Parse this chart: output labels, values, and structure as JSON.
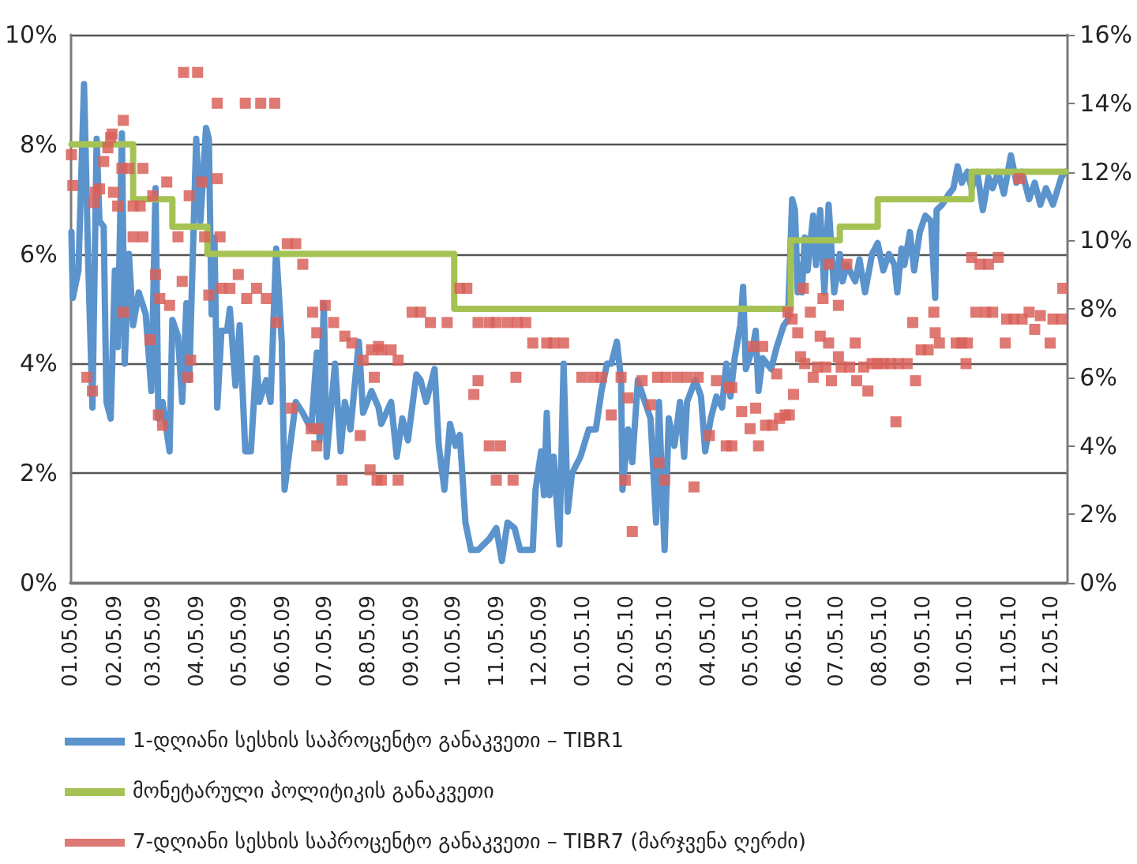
{
  "chart_data": {
    "type": "line",
    "xlim": [
      "2009-01-04",
      "2010-12-16"
    ],
    "xticks": [
      {
        "value": "2009-01-05",
        "label": "01.05.09"
      },
      {
        "value": "2009-02-05",
        "label": "02.05.09"
      },
      {
        "value": "2009-03-05",
        "label": "03.05.09"
      },
      {
        "value": "2009-04-05",
        "label": "04.05.09"
      },
      {
        "value": "2009-05-05",
        "label": "05.05.09"
      },
      {
        "value": "2009-06-05",
        "label": "06.05.09"
      },
      {
        "value": "2009-07-05",
        "label": "07.05.09"
      },
      {
        "value": "2009-08-05",
        "label": "08.05.09"
      },
      {
        "value": "2009-09-05",
        "label": "09.05.09"
      },
      {
        "value": "2009-10-05",
        "label": "10.05.09"
      },
      {
        "value": "2009-11-05",
        "label": "11.05.09"
      },
      {
        "value": "2009-12-05",
        "label": "12.05.09"
      },
      {
        "value": "2010-01-05",
        "label": "01.05.10"
      },
      {
        "value": "2010-02-05",
        "label": "02.05.10"
      },
      {
        "value": "2010-03-05",
        "label": "03.05.10"
      },
      {
        "value": "2010-04-05",
        "label": "04.05.10"
      },
      {
        "value": "2010-05-05",
        "label": "05.05.10"
      },
      {
        "value": "2010-06-05",
        "label": "06.05.10"
      },
      {
        "value": "2010-07-05",
        "label": "07.05.10"
      },
      {
        "value": "2010-08-05",
        "label": "08.05.10"
      },
      {
        "value": "2010-09-05",
        "label": "09.05.10"
      },
      {
        "value": "2010-10-05",
        "label": "10.05.10"
      },
      {
        "value": "2010-11-05",
        "label": "11.05.10"
      },
      {
        "value": "2010-12-05",
        "label": "12.05.10"
      }
    ],
    "ylim": [
      0,
      10
    ],
    "yticks": [
      {
        "value": 0,
        "label": "0%"
      },
      {
        "value": 2,
        "label": "2%"
      },
      {
        "value": 4,
        "label": "4%"
      },
      {
        "value": 6,
        "label": "6%"
      },
      {
        "value": 8,
        "label": "8%"
      },
      {
        "value": 10,
        "label": "10%"
      }
    ],
    "y2lim": [
      0,
      16
    ],
    "y2ticks": [
      {
        "value": 0,
        "label": "0%"
      },
      {
        "value": 2,
        "label": "2%"
      },
      {
        "value": 4,
        "label": "4%"
      },
      {
        "value": 6,
        "label": "6%"
      },
      {
        "value": 8,
        "label": "8%"
      },
      {
        "value": 10,
        "label": "10%"
      },
      {
        "value": 12,
        "label": "12%"
      },
      {
        "value": 14,
        "label": "14%"
      },
      {
        "value": 16,
        "label": "16%"
      }
    ],
    "grid": "y",
    "legend": "bottom",
    "series": [
      {
        "name": "1-დღიანი სესხის საპროცენტო განაკვეთი – TIBR1",
        "color": "#5b93cc",
        "marker": "none",
        "line_style": "solid",
        "x": [
          "2009-01-05",
          "2009-01-06",
          "2009-01-10",
          "2009-01-14",
          "2009-01-17",
          "2009-01-20",
          "2009-01-23",
          "2009-01-25",
          "2009-01-28",
          "2009-01-30",
          "2009-02-02",
          "2009-02-05",
          "2009-02-07",
          "2009-02-10",
          "2009-02-12",
          "2009-02-15",
          "2009-02-18",
          "2009-02-22",
          "2009-02-27",
          "2009-03-03",
          "2009-03-06",
          "2009-03-08",
          "2009-03-11",
          "2009-03-16",
          "2009-03-18",
          "2009-03-22",
          "2009-03-25",
          "2009-03-28",
          "2009-03-30",
          "2009-04-04",
          "2009-04-07",
          "2009-04-11",
          "2009-04-13",
          "2009-04-15",
          "2009-04-17",
          "2009-04-19",
          "2009-04-22",
          "2009-04-26",
          "2009-04-28",
          "2009-05-02",
          "2009-05-05",
          "2009-05-09",
          "2009-05-13",
          "2009-05-17",
          "2009-05-19",
          "2009-05-24",
          "2009-05-27",
          "2009-05-31",
          "2009-06-04",
          "2009-06-06",
          "2009-06-10",
          "2009-06-14",
          "2009-06-19",
          "2009-06-25",
          "2009-06-29",
          "2009-07-01",
          "2009-07-04",
          "2009-07-06",
          "2009-07-12",
          "2009-07-16",
          "2009-07-19",
          "2009-07-23",
          "2009-07-29",
          "2009-08-01",
          "2009-08-07",
          "2009-08-12",
          "2009-08-14",
          "2009-08-21",
          "2009-08-25",
          "2009-08-29",
          "2009-09-02",
          "2009-09-08",
          "2009-09-11",
          "2009-09-15",
          "2009-09-21",
          "2009-09-24",
          "2009-09-28",
          "2009-10-02",
          "2009-10-06",
          "2009-10-09",
          "2009-10-13",
          "2009-10-17",
          "2009-10-22",
          "2009-10-30",
          "2009-11-04",
          "2009-11-08",
          "2009-11-12",
          "2009-11-17",
          "2009-11-21",
          "2009-11-30",
          "2009-12-02",
          "2009-12-06",
          "2009-12-08",
          "2009-12-10",
          "2009-12-12",
          "2009-12-15",
          "2009-12-19",
          "2009-12-22",
          "2009-12-25",
          "2009-12-28",
          "2010-01-03",
          "2010-01-09",
          "2010-01-14",
          "2010-01-18",
          "2010-01-22",
          "2010-01-25",
          "2010-01-29",
          "2010-02-01",
          "2010-02-02",
          "2010-02-06",
          "2010-02-09",
          "2010-02-13",
          "2010-02-18",
          "2010-02-22",
          "2010-02-26",
          "2010-02-28",
          "2010-03-04",
          "2010-03-07",
          "2010-03-11",
          "2010-03-15",
          "2010-03-18",
          "2010-03-20",
          "2010-03-26",
          "2010-03-30",
          "2010-04-02",
          "2010-04-06",
          "2010-04-10",
          "2010-04-14",
          "2010-04-17",
          "2010-04-20",
          "2010-04-23",
          "2010-04-27",
          "2010-04-29",
          "2010-05-01",
          "2010-05-06",
          "2010-05-08",
          "2010-05-10",
          "2010-05-13",
          "2010-05-19",
          "2010-05-23",
          "2010-05-28",
          "2010-05-31",
          "2010-06-03",
          "2010-06-05",
          "2010-06-07",
          "2010-06-09",
          "2010-06-10",
          "2010-06-12",
          "2010-06-14",
          "2010-06-18",
          "2010-06-20",
          "2010-06-23",
          "2010-06-26",
          "2010-06-29",
          "2010-07-03",
          "2010-07-07",
          "2010-07-09",
          "2010-07-12",
          "2010-07-18",
          "2010-07-21",
          "2010-07-25",
          "2010-07-30",
          "2010-08-03",
          "2010-08-07",
          "2010-08-11",
          "2010-08-15",
          "2010-08-17",
          "2010-08-20",
          "2010-08-22",
          "2010-08-26",
          "2010-08-29",
          "2010-09-02",
          "2010-09-06",
          "2010-09-10",
          "2010-09-13",
          "2010-09-14",
          "2010-09-18",
          "2010-09-23",
          "2010-09-26",
          "2010-09-29",
          "2010-10-02",
          "2010-10-06",
          "2010-10-09",
          "2010-10-13",
          "2010-10-17",
          "2010-10-21",
          "2010-10-24",
          "2010-10-28",
          "2010-11-01",
          "2010-11-06",
          "2010-11-10",
          "2010-11-14",
          "2010-11-19",
          "2010-11-23",
          "2010-11-27",
          "2010-12-01",
          "2010-12-06",
          "2010-12-12",
          "2010-12-15"
        ],
        "values": [
          6.4,
          5.2,
          5.7,
          9.1,
          5.8,
          3.2,
          8.1,
          6.6,
          6.5,
          3.3,
          3.0,
          5.7,
          4.3,
          8.2,
          4.0,
          6.0,
          4.7,
          5.3,
          4.9,
          3.5,
          7.2,
          3.0,
          3.3,
          2.4,
          4.8,
          4.5,
          3.3,
          5.1,
          3.7,
          8.1,
          6.6,
          8.3,
          8.1,
          4.9,
          6.3,
          3.2,
          4.6,
          4.6,
          5.0,
          3.6,
          4.7,
          2.4,
          2.4,
          4.1,
          3.3,
          3.7,
          3.3,
          6.1,
          4.4,
          1.7,
          2.5,
          3.3,
          3.1,
          2.8,
          4.2,
          2.6,
          5.1,
          2.3,
          4.0,
          2.4,
          3.3,
          2.8,
          4.4,
          3.1,
          3.5,
          3.2,
          2.9,
          3.3,
          2.3,
          3.0,
          2.6,
          3.8,
          3.7,
          3.3,
          3.9,
          2.5,
          1.7,
          2.9,
          2.5,
          2.7,
          1.1,
          0.6,
          0.6,
          0.8,
          1.0,
          0.4,
          1.1,
          1.0,
          0.6,
          0.6,
          1.7,
          2.4,
          1.6,
          3.1,
          1.6,
          2.3,
          0.7,
          4.0,
          1.3,
          2.0,
          2.3,
          2.8,
          2.8,
          3.5,
          4.0,
          4.0,
          4.4,
          3.7,
          1.7,
          2.8,
          2.2,
          3.7,
          3.3,
          3.0,
          1.1,
          3.3,
          0.6,
          3.0,
          2.5,
          3.3,
          2.3,
          3.3,
          3.7,
          3.4,
          2.4,
          3.0,
          3.4,
          3.2,
          4.0,
          3.4,
          4.1,
          4.7,
          5.4,
          3.9,
          4.3,
          4.6,
          3.5,
          4.1,
          3.9,
          4.3,
          4.7,
          4.8,
          7.0,
          6.8,
          5.3,
          5.8,
          5.3,
          6.3,
          5.7,
          6.7,
          5.8,
          6.8,
          5.3,
          6.9,
          5.3,
          6.0,
          5.5,
          5.8,
          5.5,
          5.9,
          5.3,
          6.0,
          6.2,
          5.7,
          6.0,
          5.8,
          5.3,
          6.1,
          5.8,
          6.4,
          5.7,
          6.4,
          6.7,
          6.6,
          5.2,
          6.8,
          6.9,
          7.1,
          7.2,
          7.6,
          7.3,
          7.5,
          7.2,
          7.5,
          6.8,
          7.4,
          7.2,
          7.5,
          7.1,
          7.8,
          7.3,
          7.5,
          7.0,
          7.3,
          6.9,
          7.2,
          6.9,
          7.4,
          7.5
        ]
      },
      {
        "name": "მონეტარული პოლიტიკის განაკვეთი",
        "type": "step",
        "color": "#a5c254",
        "marker": "none",
        "line_style": "solid",
        "x": [
          "2009-01-05",
          "2009-02-18",
          "2009-03-18",
          "2009-04-12",
          "2009-10-05",
          "2010-06-02",
          "2010-07-07",
          "2010-08-03",
          "2010-10-09",
          "2010-12-15"
        ],
        "values": [
          8,
          7,
          6.5,
          6,
          5,
          6.25,
          6.5,
          7,
          7.5,
          7.5
        ]
      },
      {
        "name": "7-დღიანი სესხის საპროცენტო განაკვეთი – TIBR7 (მარჯვენა ღერძი)",
        "type": "scatter",
        "color": "#d9625a",
        "marker": "square",
        "axis": "y2",
        "x": [
          "2009-01-05",
          "2009-01-06",
          "2009-01-16",
          "2009-01-20",
          "2009-01-21",
          "2009-01-22",
          "2009-01-25",
          "2009-01-28",
          "2009-01-31",
          "2009-02-02",
          "2009-02-03",
          "2009-02-04",
          "2009-02-07",
          "2009-02-10",
          "2009-02-11",
          "2009-02-11",
          "2009-02-15",
          "2009-02-18",
          "2009-02-18",
          "2009-02-23",
          "2009-02-25",
          "2009-02-25",
          "2009-03-02",
          "2009-03-04",
          "2009-03-06",
          "2009-03-08",
          "2009-03-09",
          "2009-03-11",
          "2009-03-14",
          "2009-03-16",
          "2009-03-22",
          "2009-03-25",
          "2009-03-26",
          "2009-03-29",
          "2009-03-30",
          "2009-03-31",
          "2009-04-05",
          "2009-04-08",
          "2009-04-10",
          "2009-04-13",
          "2009-04-19",
          "2009-04-19",
          "2009-04-21",
          "2009-04-22",
          "2009-04-28",
          "2009-05-04",
          "2009-05-09",
          "2009-05-10",
          "2009-05-17",
          "2009-05-20",
          "2009-05-24",
          "2009-05-30",
          "2009-05-31",
          "2009-06-08",
          "2009-06-11",
          "2009-06-14",
          "2009-06-19",
          "2009-06-25",
          "2009-06-26",
          "2009-06-29",
          "2009-06-29",
          "2009-06-30",
          "2009-07-05",
          "2009-07-11",
          "2009-07-17",
          "2009-07-19",
          "2009-07-24",
          "2009-07-30",
          "2009-08-01",
          "2009-08-06",
          "2009-08-07",
          "2009-08-09",
          "2009-08-11",
          "2009-08-12",
          "2009-08-14",
          "2009-08-14",
          "2009-08-21",
          "2009-08-26",
          "2009-08-26",
          "2009-09-05",
          "2009-09-11",
          "2009-09-18",
          "2009-09-30",
          "2009-10-09",
          "2009-10-14",
          "2009-10-19",
          "2009-10-22",
          "2009-10-22",
          "2009-10-30",
          "2009-10-30",
          "2009-11-04",
          "2009-11-04",
          "2009-11-07",
          "2009-11-12",
          "2009-11-16",
          "2009-11-18",
          "2009-11-19",
          "2009-11-25",
          "2009-11-30",
          "2009-12-10",
          "2009-12-15",
          "2009-12-22",
          "2010-01-04",
          "2010-01-12",
          "2010-01-18",
          "2010-01-25",
          "2010-02-01",
          "2010-02-04",
          "2010-02-06",
          "2010-02-09",
          "2010-02-16",
          "2010-02-22",
          "2010-02-27",
          "2010-02-28",
          "2010-03-04",
          "2010-03-05",
          "2010-03-13",
          "2010-03-20",
          "2010-03-25",
          "2010-03-28",
          "2010-04-05",
          "2010-04-10",
          "2010-04-17",
          "2010-04-19",
          "2010-04-21",
          "2010-04-21",
          "2010-04-28",
          "2010-05-04",
          "2010-05-06",
          "2010-05-08",
          "2010-05-10",
          "2010-05-13",
          "2010-05-15",
          "2010-05-20",
          "2010-05-23",
          "2010-05-25",
          "2010-05-29",
          "2010-05-31",
          "2010-06-01",
          "2010-06-03",
          "2010-06-04",
          "2010-06-07",
          "2010-06-09",
          "2010-06-11",
          "2010-06-12",
          "2010-06-16",
          "2010-06-18",
          "2010-06-21",
          "2010-06-23",
          "2010-06-25",
          "2010-06-27",
          "2010-06-29",
          "2010-06-29",
          "2010-07-01",
          "2010-07-06",
          "2010-07-06",
          "2010-07-08",
          "2010-07-12",
          "2010-07-14",
          "2010-07-18",
          "2010-07-19",
          "2010-07-24",
          "2010-07-27",
          "2010-07-30",
          "2010-08-03",
          "2010-08-07",
          "2010-08-12",
          "2010-08-16",
          "2010-08-18",
          "2010-08-24",
          "2010-08-28",
          "2010-08-30",
          "2010-09-03",
          "2010-09-08",
          "2010-09-12",
          "2010-09-13",
          "2010-09-16",
          "2010-09-28",
          "2010-10-02",
          "2010-10-05",
          "2010-10-06",
          "2010-10-09",
          "2010-10-12",
          "2010-10-15",
          "2010-10-19",
          "2010-10-21",
          "2010-10-24",
          "2010-10-28",
          "2010-11-02",
          "2010-11-03",
          "2010-11-08",
          "2010-11-12",
          "2010-11-14",
          "2010-11-19",
          "2010-11-23",
          "2010-11-27",
          "2010-12-04",
          "2010-12-06",
          "2010-12-12",
          "2010-12-13"
        ],
        "values": [
          12.5,
          11.6,
          6.0,
          5.6,
          11.1,
          11.4,
          11.5,
          12.3,
          12.7,
          13.0,
          13.1,
          11.4,
          11.0,
          12.1,
          13.5,
          7.9,
          12.1,
          11.0,
          10.1,
          11.0,
          12.1,
          10.1,
          7.1,
          11.3,
          9.0,
          4.9,
          8.3,
          4.6,
          11.7,
          8.1,
          10.1,
          8.8,
          14.9,
          6.0,
          11.3,
          6.5,
          14.9,
          11.7,
          10.1,
          8.4,
          14.0,
          11.8,
          10.1,
          8.6,
          8.6,
          9.0,
          14.0,
          8.3,
          8.6,
          14.0,
          8.3,
          14.0,
          7.6,
          9.9,
          5.1,
          9.9,
          9.3,
          4.5,
          7.9,
          4.0,
          7.3,
          4.5,
          8.1,
          7.6,
          3.0,
          7.2,
          7.0,
          4.3,
          6.5,
          3.3,
          6.8,
          6.0,
          3.0,
          6.9,
          6.8,
          3.0,
          6.8,
          6.5,
          3.0,
          7.9,
          7.9,
          7.6,
          7.6,
          8.6,
          8.6,
          5.5,
          5.9,
          7.6,
          4.0,
          7.6,
          7.6,
          3.0,
          4.0,
          7.6,
          3.0,
          6.0,
          7.6,
          7.6,
          7.0,
          7.0,
          7.0,
          7.0,
          6.0,
          6.0,
          6.0,
          4.9,
          6.0,
          3.0,
          5.4,
          1.5,
          5.9,
          5.2,
          6.0,
          3.5,
          3.0,
          6.0,
          6.0,
          6.0,
          2.8,
          6.0,
          4.3,
          5.9,
          4.0,
          5.7,
          4.0,
          5.7,
          5.0,
          4.5,
          6.9,
          5.1,
          4.0,
          6.9,
          4.6,
          4.6,
          6.1,
          4.8,
          4.9,
          7.9,
          4.9,
          7.7,
          5.5,
          7.3,
          6.6,
          8.6,
          6.4,
          7.9,
          6.0,
          6.3,
          7.2,
          8.3,
          6.3,
          9.3,
          7.0,
          5.9,
          8.1,
          6.6,
          6.3,
          9.3,
          6.3,
          7.0,
          5.9,
          6.3,
          5.6,
          6.4,
          6.4,
          6.4,
          6.4,
          4.7,
          6.4,
          6.4,
          7.6,
          5.9,
          6.8,
          6.8,
          7.9,
          7.3,
          7.0,
          7.0,
          7.0,
          6.4,
          7.0,
          9.5,
          7.9,
          9.3,
          7.9,
          9.3,
          7.9,
          9.5,
          7.0,
          7.7,
          7.7,
          11.8,
          7.7,
          7.9,
          7.4,
          7.8,
          7.0,
          7.7,
          7.7,
          8.6
        ]
      }
    ]
  }
}
